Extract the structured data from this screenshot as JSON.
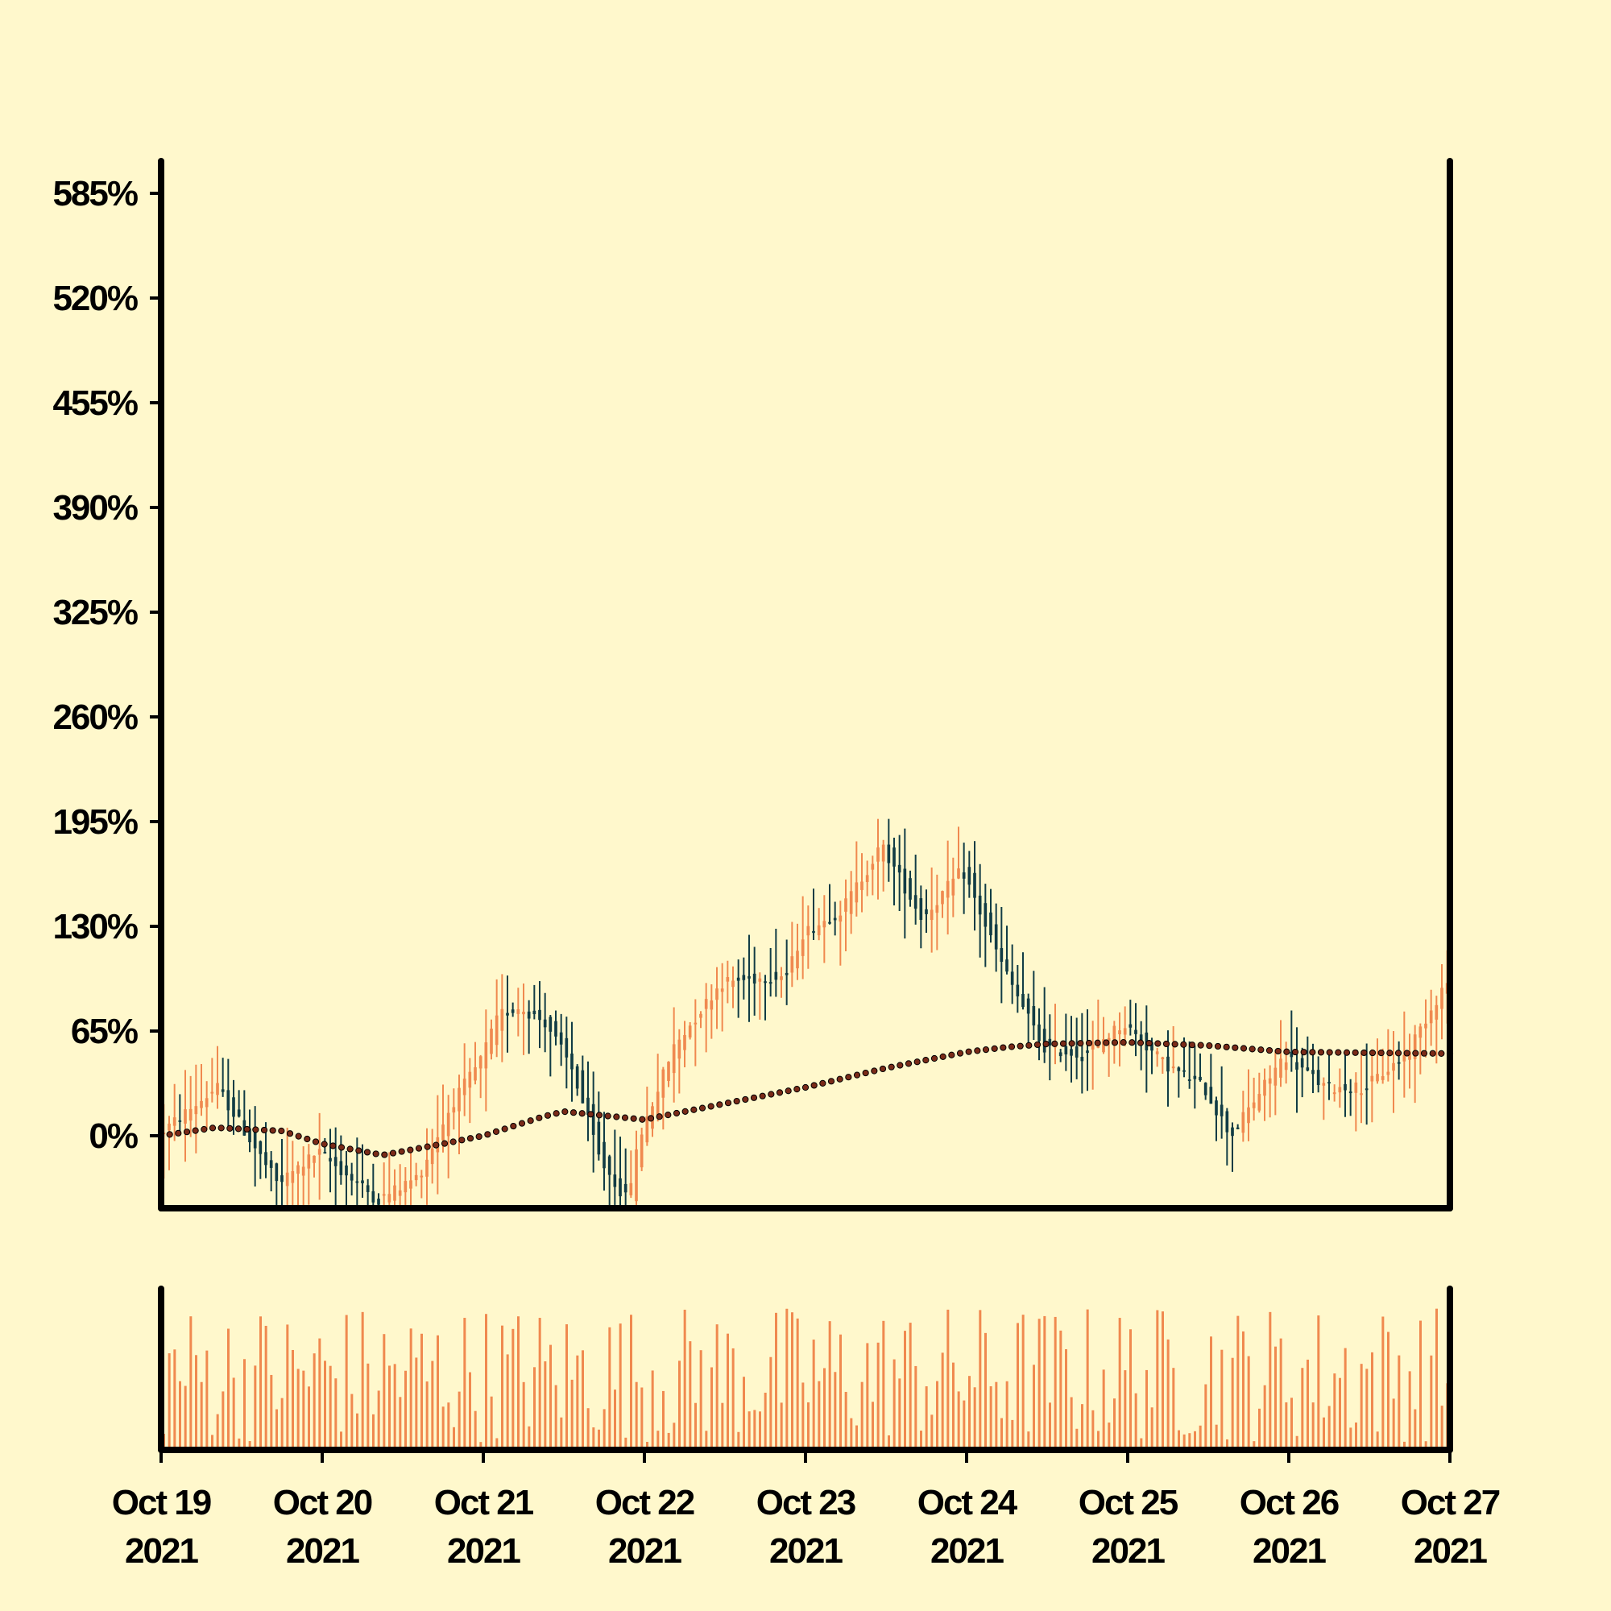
{
  "chart_data": {
    "type": "candlestick",
    "colors": {
      "background": "#fff8cc",
      "up": "#f0894f",
      "down": "#113c45",
      "volume": "#f0894f",
      "moving_average": "#7a2a18",
      "axis": "#000000"
    },
    "y_axis": {
      "unit": "%",
      "range": [
        -45,
        605
      ],
      "ticks": [
        0,
        65,
        130,
        195,
        260,
        325,
        390,
        455,
        520,
        585
      ],
      "tick_labels": [
        "0%",
        "65%",
        "130%",
        "195%",
        "260%",
        "325%",
        "390%",
        "455%",
        "520%",
        "585%"
      ]
    },
    "x_axis": {
      "range": [
        "2021-10-19",
        "2021-10-27"
      ],
      "ticks": [
        {
          "date": "2021-10-19",
          "line1": "Oct 19",
          "line2": "2021"
        },
        {
          "date": "2021-10-20",
          "line1": "Oct 20",
          "line2": "2021"
        },
        {
          "date": "2021-10-21",
          "line1": "Oct 21",
          "line2": "2021"
        },
        {
          "date": "2021-10-22",
          "line1": "Oct 22",
          "line2": "2021"
        },
        {
          "date": "2021-10-23",
          "line1": "Oct 23",
          "line2": "2021"
        },
        {
          "date": "2021-10-24",
          "line1": "Oct 24",
          "line2": "2021"
        },
        {
          "date": "2021-10-25",
          "line1": "Oct 25",
          "line2": "2021"
        },
        {
          "date": "2021-10-26",
          "line1": "Oct 26",
          "line2": "2021"
        },
        {
          "date": "2021-10-27",
          "line1": "Oct 27",
          "line2": "2021"
        }
      ]
    },
    "price_path": [
      {
        "date": "2021-10-19",
        "value": 0
      },
      {
        "date": "2021-10-19 09:00",
        "value": 30
      },
      {
        "date": "2021-10-19 18:00",
        "value": -30
      },
      {
        "date": "2021-10-20",
        "value": -10
      },
      {
        "date": "2021-10-20 06:00",
        "value": -30
      },
      {
        "date": "2021-10-20 09:00",
        "value": -40
      },
      {
        "date": "2021-10-20 15:00",
        "value": -25
      },
      {
        "date": "2021-10-20 20:00",
        "value": 20
      },
      {
        "date": "2021-10-21",
        "value": 45
      },
      {
        "date": "2021-10-21 03:00",
        "value": 75
      },
      {
        "date": "2021-10-21 06:00",
        "value": 80
      },
      {
        "date": "2021-10-21 10:00",
        "value": 70
      },
      {
        "date": "2021-10-21 14:00",
        "value": 40
      },
      {
        "date": "2021-10-21 18:00",
        "value": -15
      },
      {
        "date": "2021-10-21 22:00",
        "value": -40
      },
      {
        "date": "2021-10-22",
        "value": 0
      },
      {
        "date": "2021-10-22 05:00",
        "value": 55
      },
      {
        "date": "2021-10-22 12:00",
        "value": 95
      },
      {
        "date": "2021-10-22 22:00",
        "value": 100
      },
      {
        "date": "2021-10-23",
        "value": 125
      },
      {
        "date": "2021-10-23 06:00",
        "value": 140
      },
      {
        "date": "2021-10-23 12:00",
        "value": 180
      },
      {
        "date": "2021-10-23 18:00",
        "value": 135
      },
      {
        "date": "2021-10-24",
        "value": 165
      },
      {
        "date": "2021-10-24 06:00",
        "value": 105
      },
      {
        "date": "2021-10-24 12:00",
        "value": 55
      },
      {
        "date": "2021-10-24 18:00",
        "value": 50
      },
      {
        "date": "2021-10-25",
        "value": 70
      },
      {
        "date": "2021-10-25 06:00",
        "value": 45
      },
      {
        "date": "2021-10-25 12:00",
        "value": 30
      },
      {
        "date": "2021-10-25 16:00",
        "value": 0
      },
      {
        "date": "2021-10-26",
        "value": 50
      },
      {
        "date": "2021-10-26 06:00",
        "value": 30
      },
      {
        "date": "2021-10-26 12:00",
        "value": 30
      },
      {
        "date": "2021-10-26 18:00",
        "value": 50
      },
      {
        "date": "2021-10-27",
        "value": 95
      }
    ],
    "moving_average": [
      {
        "date": "2021-10-19",
        "value": 0
      },
      {
        "date": "2021-10-19 08:00",
        "value": 5
      },
      {
        "date": "2021-10-19 18:00",
        "value": 3
      },
      {
        "date": "2021-10-20",
        "value": -5
      },
      {
        "date": "2021-10-20 09:00",
        "value": -12
      },
      {
        "date": "2021-10-20 18:00",
        "value": -5
      },
      {
        "date": "2021-10-21",
        "value": 0
      },
      {
        "date": "2021-10-21 09:00",
        "value": 12
      },
      {
        "date": "2021-10-21 12:00",
        "value": 15
      },
      {
        "date": "2021-10-22",
        "value": 10
      },
      {
        "date": "2021-10-22 12:00",
        "value": 20
      },
      {
        "date": "2021-10-23",
        "value": 30
      },
      {
        "date": "2021-10-23 12:00",
        "value": 42
      },
      {
        "date": "2021-10-24",
        "value": 52
      },
      {
        "date": "2021-10-24 06:00",
        "value": 55
      },
      {
        "date": "2021-10-24 12:00",
        "value": 57
      },
      {
        "date": "2021-10-25",
        "value": 58
      },
      {
        "date": "2021-10-25 12:00",
        "value": 56
      },
      {
        "date": "2021-10-26",
        "value": 52
      },
      {
        "date": "2021-10-27",
        "value": 51
      }
    ],
    "volume_relative_range": [
      0.05,
      0.95
    ]
  }
}
